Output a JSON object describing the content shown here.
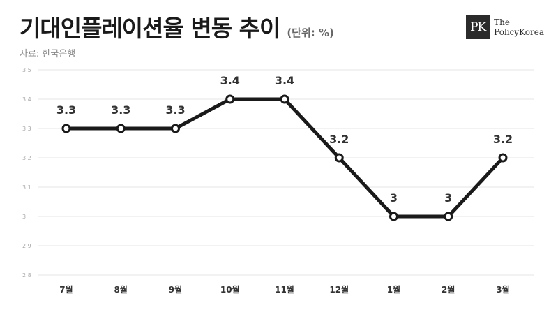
{
  "header": {
    "title": "기대인플레이션율 변동 추이",
    "unit": "(단위: %)",
    "source": "자료: 한국은행"
  },
  "logo": {
    "mark": "PK",
    "line1": "The",
    "line2": "PolicyKorea"
  },
  "chart_data": {
    "type": "line",
    "categories": [
      "7월",
      "8월",
      "9월",
      "10월",
      "11월",
      "12월",
      "1월",
      "2월",
      "3월"
    ],
    "series": [
      {
        "values": [
          3.3,
          3.3,
          3.3,
          3.4,
          3.4,
          3.2,
          3.0,
          3.0,
          3.2
        ]
      }
    ],
    "data_labels": [
      "3.3",
      "3.3",
      "3.3",
      "3.4",
      "3.4",
      "3.2",
      "3",
      "3",
      "3.2"
    ],
    "y_ticks": [
      "2.8",
      "2.9",
      "3",
      "3.1",
      "3.2",
      "3.3",
      "3.4",
      "3.5"
    ],
    "ylim": [
      2.8,
      3.5
    ],
    "grid": true,
    "line_color": "#1a1a1a",
    "grid_color": "#e6e6e6"
  }
}
